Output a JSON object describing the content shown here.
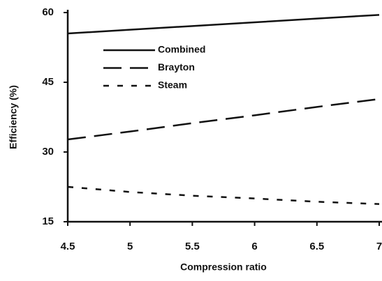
{
  "chart_data": {
    "type": "line",
    "xlabel": "Compression ratio",
    "ylabel": "Efficiency (%)",
    "x": [
      4.5,
      5,
      5.5,
      6,
      6.5,
      7
    ],
    "series": [
      {
        "name": "Combined",
        "color": "#111111",
        "line_style": "solid",
        "values": [
          55.5,
          56.3,
          57.1,
          57.9,
          58.7,
          59.5
        ]
      },
      {
        "name": "Brayton",
        "color": "#111111",
        "line_style": "long-dash",
        "values": [
          32.7,
          34.4,
          36.2,
          37.9,
          39.7,
          41.4
        ]
      },
      {
        "name": "Steam",
        "color": "#111111",
        "line_style": "short-dash",
        "values": [
          22.5,
          21.4,
          20.6,
          20.0,
          19.3,
          18.8
        ]
      }
    ],
    "xlim": [
      4.5,
      7
    ],
    "xticks": [
      4.5,
      5,
      5.5,
      6,
      6.5,
      7
    ],
    "ylim": [
      15,
      60
    ],
    "yticks": [
      15,
      30,
      45,
      60
    ],
    "grid": false,
    "legend": "upper left"
  }
}
